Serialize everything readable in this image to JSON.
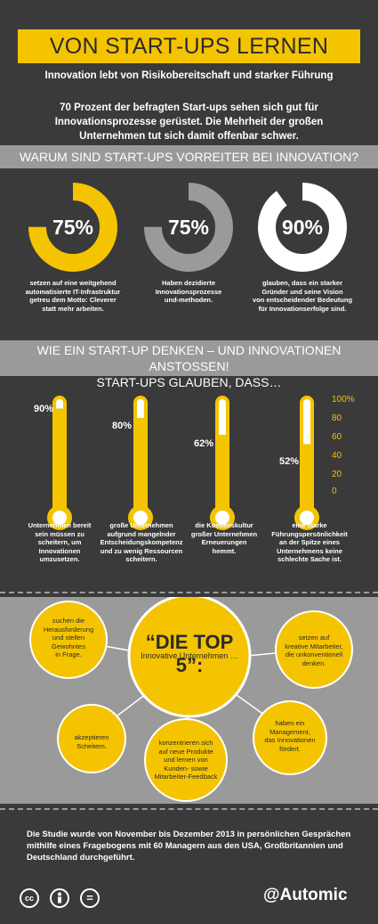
{
  "header": {
    "title": "VON START-UPS LERNEN",
    "subtitle": "Innovation lebt von Risikobereitschaft und starker Führung",
    "intro_line1": "70 Prozent der befragten Start-ups sehen sich gut für",
    "intro_line2": "Innovationsprozesse gerüstet. Die Mehrheit der großen",
    "intro_line3": "Unternehmen tut sich damit offenbar schwer."
  },
  "section1": {
    "heading": "WARUM SIND START-UPS VORREITER BEI INNOVATION?",
    "donuts": [
      {
        "value": 75,
        "label": "75%",
        "color": "#f5c400",
        "caption": [
          "setzen auf eine weitgehend",
          "automatisierte IT-Infrastruktur",
          "getreu dem Motto: Cleverer",
          "statt mehr arbeiten."
        ]
      },
      {
        "value": 75,
        "label": "75%",
        "color": "#9a9a9a",
        "caption": [
          "Haben dezidierte",
          "Innovationsprozesse",
          "und-methoden."
        ]
      },
      {
        "value": 90,
        "label": "90%",
        "color": "#ffffff",
        "caption": [
          "glauben, dass ein starker",
          "Gründer und seine Vision",
          "von entscheidender Bedeutung",
          "für Innovationserfolge sind."
        ]
      }
    ]
  },
  "section2": {
    "heading_line1": "WIE EIN START-UP DENKEN – UND INNOVATIONEN ANSTOSSEN!",
    "heading_line2": "START-UPS GLAUBEN, DASS…",
    "scale": [
      "100%",
      "80",
      "60",
      "40",
      "20",
      "0"
    ],
    "thermometers": [
      {
        "value": 90,
        "label": "90%",
        "caption": [
          "Unternehmen bereit",
          "sein müssen zu",
          "scheitern, um",
          "Innovationen",
          "umzusetzen."
        ]
      },
      {
        "value": 80,
        "label": "80%",
        "caption": [
          "große Unternehmen",
          "aufgrund mangelnder",
          "Entscheidungskompetenz",
          "und zu wenig Ressourcen",
          "scheitern."
        ]
      },
      {
        "value": 62,
        "label": "62%",
        "caption": [
          "die Konsenskultur",
          "großer Unternehmen",
          "Erneuerungen",
          "hemmt."
        ]
      },
      {
        "value": 52,
        "label": "52%",
        "caption": [
          "eine starke",
          "Führungspersönlichkeit",
          "an der Spitze eines",
          "Unternehmens keine",
          "schlechte Sache ist."
        ]
      }
    ]
  },
  "top5": {
    "title": "“DIE TOP 5”:",
    "subtitle": "Innovative Unternehmen …",
    "items": [
      [
        "suchen die",
        "Herausforderung",
        "und stellen",
        "Gewohntes",
        "in Frage."
      ],
      [
        "setzen auf",
        "kreative Mitarbeiter,",
        "die unkonventionell",
        "denken."
      ],
      [
        "akzeptieren",
        "Scheitern."
      ],
      [
        "konzentrieren sich",
        "auf neue Produkte",
        "und lernen von",
        "Kunden- sowie",
        "Mitarbeiter-Feedback"
      ],
      [
        "haben ein",
        "Management,",
        "das Innovationen",
        "fördert."
      ]
    ]
  },
  "footer": {
    "study_line1": "Die Studie wurde von November bis Dezember 2013 in persönlichen Gesprächen",
    "study_line2": "mithilfe eines Fragebogens mit 60 Managern aus den USA, Großbritannien und",
    "study_line3": "Deutschland durchgeführt.",
    "license_icons": [
      "cc",
      "by",
      "nd"
    ],
    "cc_label": "cc",
    "nd_label": "=",
    "brand": "@Automic"
  },
  "colors": {
    "accent": "#f5c400",
    "background": "#3a3a3a",
    "band": "#9a9a9a"
  }
}
